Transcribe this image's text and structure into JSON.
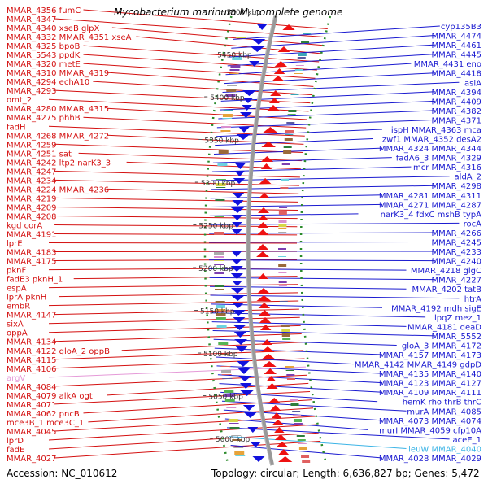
{
  "title": "Mycobacterium marinum M, complete genome",
  "footer": {
    "accession": "Accession: NC_010612",
    "topology": "Topology: circular; Length: 6,636,827 bp; Genes: 5,472"
  },
  "colors": {
    "left_labels": "#d41010",
    "right_labels": "#1a1ad0",
    "rna_left": "#e59ad8",
    "rna_right": "#3cb4e6",
    "axis": "#999999",
    "forward_arrows": "#ee1111",
    "reverse_arrows": "#1111dd",
    "dotted_ring": "#2a8a2a"
  },
  "position_ticks": [
    "5500 kbp",
    "5450 kbp",
    "5400 kbp",
    "5350 kbp",
    "5300 kbp",
    "5250 kbp",
    "5200 kbp",
    "5150 kbp",
    "5100 kbp",
    "5050 kbp",
    "5000 kbp"
  ],
  "left_labels": [
    [
      "MMAR_4356",
      "fumC"
    ],
    [
      "MMAR_4347"
    ],
    [
      "MMAR_4340",
      "xseB",
      "glpX"
    ],
    [
      "MMAR_4332",
      "MMAR_4351",
      "xseA"
    ],
    [
      "MMAR_4325",
      "bpoB"
    ],
    [
      "MMAR_5543",
      "ppdK"
    ],
    [
      "MMAR_4320",
      "metE"
    ],
    [
      "MMAR_4310",
      "MMAR_4319"
    ],
    [
      "MMAR_4294",
      "echA10"
    ],
    [
      "MMAR_4293"
    ],
    [
      "omt_2"
    ],
    [
      "MMAR_4280",
      "MMAR_4315"
    ],
    [
      "MMAR_4275",
      "phhB"
    ],
    [
      "fadH"
    ],
    [
      "MMAR_4268",
      "MMAR_4272"
    ],
    [
      "MMAR_4259"
    ],
    [
      "MMAR_4251",
      "sat"
    ],
    [
      "MMAR_4242",
      "ltp2",
      "narK3_3"
    ],
    [
      "MMAR_4247"
    ],
    [
      "MMAR_4234"
    ],
    [
      "MMAR_4224",
      "MMAR_4236"
    ],
    [
      "MMAR_4219"
    ],
    [
      "MMAR_4209"
    ],
    [
      "MMAR_4208"
    ],
    [
      "kgd",
      "corA"
    ],
    [
      "MMAR_4191"
    ],
    [
      "lprE"
    ],
    [
      "MMAR_4183"
    ],
    [
      "MMAR_4175"
    ],
    [
      "pknF"
    ],
    [
      "fadE3",
      "pknH_1"
    ],
    [
      "espA"
    ],
    [
      "lprA",
      "pknH"
    ],
    [
      "embR"
    ],
    [
      "MMAR_4147"
    ],
    [
      "sixA"
    ],
    [
      "oppA"
    ],
    [
      "MMAR_4134"
    ],
    [
      "MMAR_4122",
      "gloA_2",
      "oppB"
    ],
    [
      "MMAR_4115"
    ],
    [
      "MMAR_4106"
    ],
    [
      "argV"
    ],
    [
      "MMAR_4084"
    ],
    [
      "MMAR_4079",
      "alkA",
      "ogt"
    ],
    [
      "MMAR_4071"
    ],
    [
      "MMAR_4062",
      "pncB"
    ],
    [
      "mce3B_1",
      "mce3C_1"
    ],
    [
      "MMAR_4045"
    ],
    [
      "lprD"
    ],
    [
      "fadE"
    ],
    [
      "MMAR_4027"
    ]
  ],
  "right_labels": [
    [
      "cyp135B3"
    ],
    [
      "MMAR_4474"
    ],
    [
      "MMAR_4461"
    ],
    [
      "MMAR_4445"
    ],
    [
      "MMAR_4431",
      "eno"
    ],
    [
      "MMAR_4418"
    ],
    [
      "aslA"
    ],
    [
      "MMAR_4394"
    ],
    [
      "MMAR_4409"
    ],
    [
      "MMAR_4382"
    ],
    [
      "MMAR_4371"
    ],
    [
      "ispH",
      "MMAR_4363",
      "mca"
    ],
    [
      "zwf1",
      "MMAR_4352",
      "desA2"
    ],
    [
      "MMAR_4324",
      "MMAR_4344"
    ],
    [
      "fadA6_3",
      "MMAR_4329"
    ],
    [
      "mcr",
      "MMAR_4316"
    ],
    [
      "aldA_2"
    ],
    [
      "MMAR_4298"
    ],
    [
      "MMAR_4281",
      "MMAR_4311"
    ],
    [
      "MMAR_4271",
      "MMAR_4287"
    ],
    [
      "narK3_4",
      "fdxC",
      "mshB",
      "typA"
    ],
    [
      "rocA"
    ],
    [
      "MMAR_4266"
    ],
    [
      "MMAR_4245"
    ],
    [
      "MMAR_4233"
    ],
    [
      "MMAR_4240"
    ],
    [
      "MMAR_4218",
      "glgC"
    ],
    [
      "MMAR_4227"
    ],
    [
      "MMAR_4202",
      "tatB"
    ],
    [
      "htrA"
    ],
    [
      "MMAR_4192",
      "mdh",
      "sigE"
    ],
    [
      "lpqZ",
      "mez_1"
    ],
    [
      "MMAR_4181",
      "deaD"
    ],
    [
      "MMAR_5552"
    ],
    [
      "gloA_3",
      "MMAR_4172"
    ],
    [
      "MMAR_4157",
      "MMAR_4173"
    ],
    [
      "MMAR_4142",
      "MMAR_4149",
      "gdpD"
    ],
    [
      "MMAR_4135",
      "MMAR_4140"
    ],
    [
      "MMAR_4123",
      "MMAR_4127"
    ],
    [
      "MMAR_4109",
      "MMAR_4111"
    ],
    [
      "hemK",
      "rho",
      "thrB",
      "thrC"
    ],
    [
      "murA",
      "MMAR_4085"
    ],
    [
      "MMAR_4073",
      "MMAR_4074"
    ],
    [
      "murI",
      "MMAR_4059",
      "cfp10A"
    ],
    [
      "aceE_1"
    ],
    [
      "leuW",
      "MMAR_4040"
    ],
    [
      "MMAR_4028",
      "MMAR_4029"
    ]
  ]
}
